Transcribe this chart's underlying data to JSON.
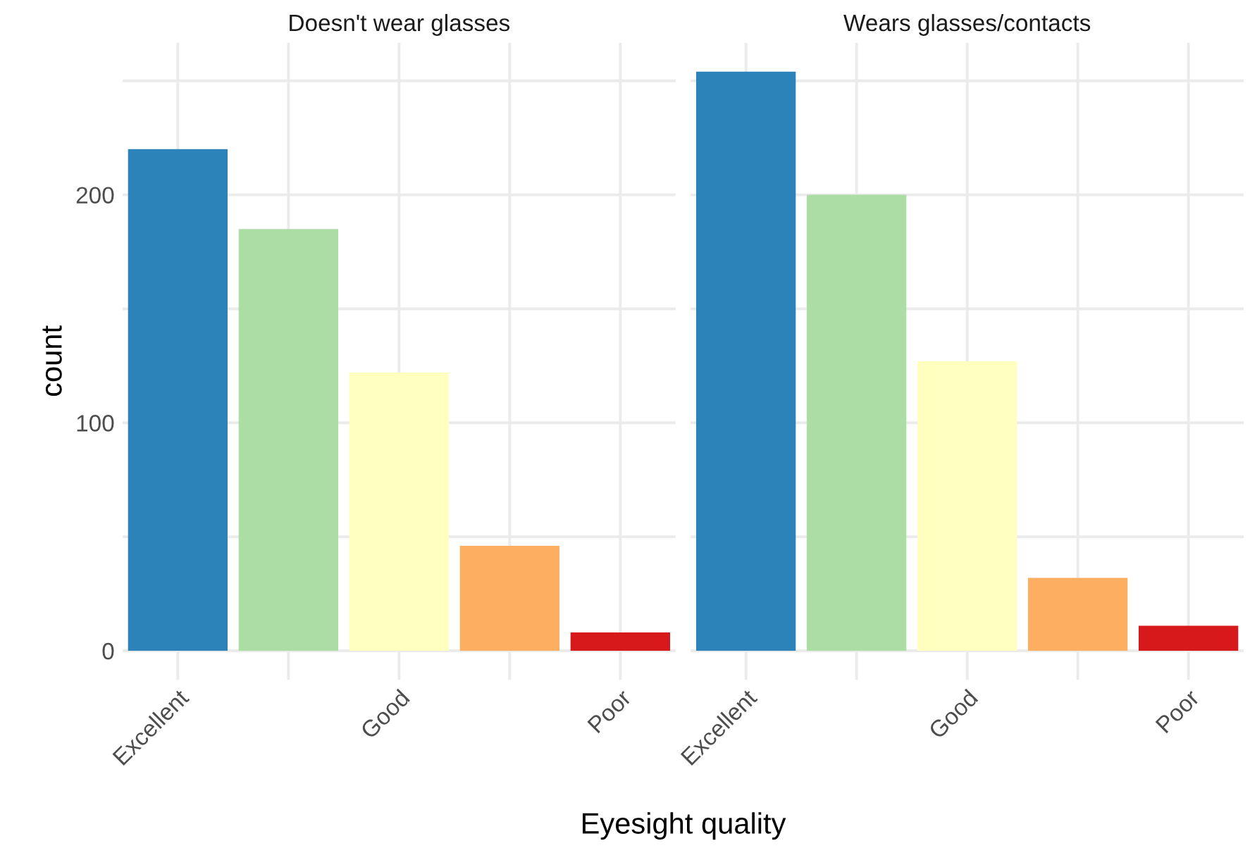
{
  "chart_data": [
    {
      "type": "bar",
      "title": "Doesn't wear glasses",
      "ylabel": "count",
      "xlabel": "Eyesight quality",
      "categories": [
        "Excellent",
        null,
        "Good",
        null,
        "Poor"
      ],
      "values": [
        220,
        185,
        122,
        46,
        8
      ],
      "colors": [
        "#2b83ba",
        "#abdda4",
        "#ffffbf",
        "#fdae61",
        "#d7191c"
      ],
      "ylim": [
        -12.7,
        266.7
      ],
      "yticks": [
        0,
        {
          "value": 50,
          "label": null
        },
        100,
        {
          "value": 150,
          "label": null
        },
        200,
        {
          "value": 250,
          "label": null
        }
      ],
      "grid": true,
      "legend": false
    },
    {
      "type": "bar",
      "title": "Wears glasses/contacts",
      "categories": [
        "Excellent",
        null,
        "Good",
        null,
        "Poor"
      ],
      "values": [
        254,
        200,
        127,
        32,
        11
      ],
      "colors": [
        "#2b83ba",
        "#abdda4",
        "#ffffbf",
        "#fdae61",
        "#d7191c"
      ],
      "ylim": [
        -12.7,
        266.7
      ],
      "yticks": [
        0,
        {
          "value": 50,
          "label": null
        },
        100,
        {
          "value": 150,
          "label": null
        },
        200,
        {
          "value": 250,
          "label": null
        }
      ],
      "grid": true,
      "legend": false,
      "tick_labels": "x"
    }
  ]
}
